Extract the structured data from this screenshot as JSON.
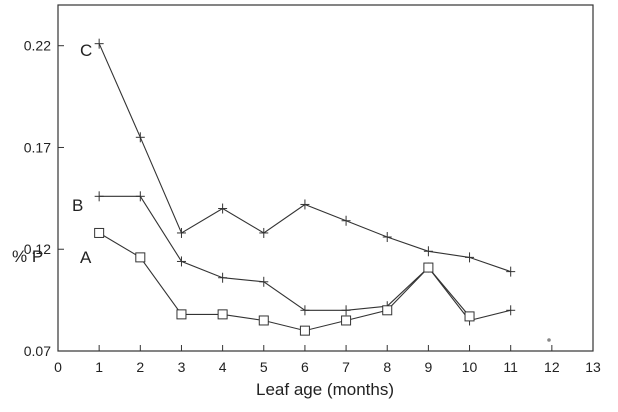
{
  "chart_data": {
    "type": "line",
    "title": "",
    "xlabel": "Leaf age (months)",
    "ylabel": "% P",
    "xlim": [
      0,
      13
    ],
    "ylim": [
      0.07,
      0.24
    ],
    "x_ticks": [
      0,
      1,
      2,
      3,
      4,
      5,
      6,
      7,
      8,
      9,
      10,
      11,
      12,
      13
    ],
    "y_ticks": [
      0.07,
      0.12,
      0.17,
      0.22
    ],
    "y_tick_labels": [
      "0.07",
      "0.12",
      "0.17",
      "0.22"
    ],
    "grid": false,
    "legend": "none",
    "series": [
      {
        "name": "C",
        "marker": "plus",
        "points": [
          [
            1,
            0.221
          ],
          [
            2,
            0.175
          ],
          [
            3,
            0.128
          ],
          [
            4,
            0.14
          ],
          [
            5,
            0.128
          ],
          [
            6,
            0.142
          ],
          [
            7,
            0.134
          ],
          [
            8,
            0.126
          ],
          [
            9,
            0.119
          ],
          [
            10,
            0.116
          ],
          [
            11,
            0.109
          ]
        ]
      },
      {
        "name": "B",
        "marker": "plus",
        "points": [
          [
            1,
            0.146
          ],
          [
            2,
            0.146
          ],
          [
            3,
            0.114
          ],
          [
            4,
            0.106
          ],
          [
            5,
            0.104
          ],
          [
            6,
            0.09
          ],
          [
            7,
            0.09
          ],
          [
            8,
            0.092
          ],
          [
            9,
            0.111
          ],
          [
            10,
            0.085
          ],
          [
            11,
            0.09
          ]
        ]
      },
      {
        "name": "A",
        "marker": "square",
        "points": [
          [
            1,
            0.128
          ],
          [
            2,
            0.116
          ],
          [
            3,
            0.088
          ],
          [
            4,
            0.088
          ],
          [
            5,
            0.085
          ],
          [
            6,
            0.08
          ],
          [
            7,
            0.085
          ],
          [
            8,
            0.09
          ],
          [
            9,
            0.111
          ],
          [
            10,
            0.087
          ]
        ]
      }
    ]
  }
}
